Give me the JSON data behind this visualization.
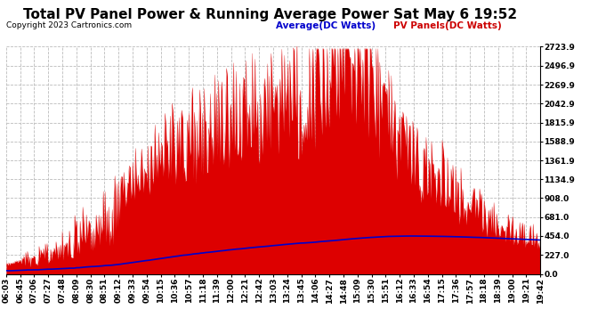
{
  "title": "Total PV Panel Power & Running Average Power Sat May 6 19:52",
  "copyright": "Copyright 2023 Cartronics.com",
  "legend_avg": "Average(DC Watts)",
  "legend_pv": "PV Panels(DC Watts)",
  "ylabel_right_values": [
    0.0,
    227.0,
    454.0,
    681.0,
    908.0,
    1134.9,
    1361.9,
    1588.9,
    1815.9,
    2042.9,
    2269.9,
    2496.9,
    2723.9
  ],
  "ymax": 2723.9,
  "ymin": 0.0,
  "bg_color": "#ffffff",
  "plot_bg_color": "#ffffff",
  "grid_color": "#bbbbbb",
  "bar_color": "#dd0000",
  "avg_line_color": "#0000cc",
  "title_color": "#000000",
  "copyright_color": "#000000",
  "legend_avg_color": "#0000cc",
  "legend_pv_color": "#cc0000",
  "tick_label_fontsize": 6.5,
  "title_fontsize": 11,
  "x_labels": [
    "06:03",
    "06:45",
    "07:06",
    "07:27",
    "07:48",
    "08:09",
    "08:30",
    "08:51",
    "09:12",
    "09:33",
    "09:54",
    "10:15",
    "10:36",
    "10:57",
    "11:18",
    "11:39",
    "12:00",
    "12:21",
    "12:42",
    "13:03",
    "13:24",
    "13:45",
    "14:06",
    "14:27",
    "14:48",
    "15:09",
    "15:30",
    "15:51",
    "16:12",
    "16:33",
    "16:54",
    "17:15",
    "17:36",
    "17:57",
    "18:18",
    "18:39",
    "19:00",
    "19:21",
    "19:42"
  ]
}
